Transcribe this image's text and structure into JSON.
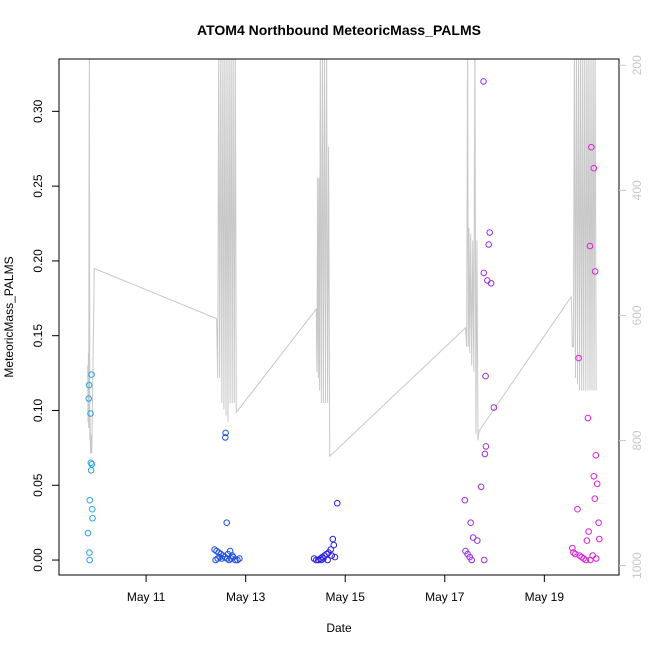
{
  "chart_data": {
    "type": "scatter",
    "title": "ATOM4 Northbound MeteoricMass_PALMS",
    "xlabel": "Date",
    "ylabel": "MeteoricMass_PALMS",
    "xlim": [
      "2017-05-09T06:00",
      "2017-05-20T12:00"
    ],
    "ylim": [
      -0.01,
      0.335
    ],
    "x_ticks": [
      {
        "date": "2017-05-11",
        "label": "May 11"
      },
      {
        "date": "2017-05-13",
        "label": "May 13"
      },
      {
        "date": "2017-05-15",
        "label": "May 15"
      },
      {
        "date": "2017-05-17",
        "label": "May 17"
      },
      {
        "date": "2017-05-19",
        "label": "May 19"
      }
    ],
    "y_ticks": [
      0.0,
      0.05,
      0.1,
      0.15,
      0.2,
      0.25,
      0.3
    ],
    "y_tick_labels": [
      "0.00",
      "0.05",
      "0.10",
      "0.15",
      "0.20",
      "0.25",
      "0.30"
    ],
    "right_axis": {
      "quantity": "pressure",
      "lim": [
        1015,
        190
      ],
      "reversed": true,
      "ticks": [
        200,
        400,
        600,
        800,
        1000
      ],
      "tick_labels": [
        "200",
        "400",
        "600",
        "800",
        "1000"
      ],
      "color": "#c8c8c8"
    },
    "grid": false,
    "series": [
      {
        "color": "#29a3e6",
        "points": [
          [
            "2017-05-09T20:30",
            0.117
          ],
          [
            "2017-05-09T20:20",
            0.108
          ],
          [
            "2017-05-09T21:40",
            0.124
          ],
          [
            "2017-05-09T21:10",
            0.098
          ],
          [
            "2017-05-09T21:20",
            0.065
          ],
          [
            "2017-05-09T21:50",
            0.064
          ],
          [
            "2017-05-09T21:30",
            0.06
          ],
          [
            "2017-05-09T20:50",
            0.04
          ],
          [
            "2017-05-09T22:00",
            0.034
          ],
          [
            "2017-05-09T22:10",
            0.028
          ],
          [
            "2017-05-09T20:00",
            0.018
          ],
          [
            "2017-05-09T20:40",
            0.005
          ],
          [
            "2017-05-09T20:45",
            0.0
          ]
        ]
      },
      {
        "color": "#1f4fe0",
        "points": [
          [
            "2017-05-12T14:20",
            0.085
          ],
          [
            "2017-05-12T14:10",
            0.082
          ],
          [
            "2017-05-12T14:50",
            0.025
          ],
          [
            "2017-05-12T09:00",
            0.007
          ],
          [
            "2017-05-12T10:00",
            0.006
          ],
          [
            "2017-05-12T11:00",
            0.005
          ],
          [
            "2017-05-12T12:00",
            0.004
          ],
          [
            "2017-05-12T13:00",
            0.003
          ],
          [
            "2017-05-12T14:00",
            0.002
          ],
          [
            "2017-05-12T15:00",
            0.001
          ],
          [
            "2017-05-12T16:00",
            0.0
          ],
          [
            "2017-05-12T17:00",
            0.001
          ],
          [
            "2017-05-12T18:00",
            0.002
          ],
          [
            "2017-05-12T19:00",
            0.0
          ],
          [
            "2017-05-12T20:00",
            0.0
          ],
          [
            "2017-05-12T21:00",
            0.001
          ],
          [
            "2017-05-12T12:30",
            0.001
          ],
          [
            "2017-05-12T15:30",
            0.004
          ],
          [
            "2017-05-12T16:30",
            0.006
          ],
          [
            "2017-05-12T17:30",
            0.003
          ],
          [
            "2017-05-12T11:30",
            0.002
          ],
          [
            "2017-05-12T09:30",
            0.0
          ],
          [
            "2017-05-12T10:30",
            0.001
          ]
        ]
      },
      {
        "color": "#2a1ee0",
        "points": [
          [
            "2017-05-14T20:10",
            0.038
          ],
          [
            "2017-05-14T18:00",
            0.014
          ],
          [
            "2017-05-14T18:30",
            0.01
          ],
          [
            "2017-05-14T17:00",
            0.007
          ],
          [
            "2017-05-14T16:00",
            0.005
          ],
          [
            "2017-05-14T15:00",
            0.004
          ],
          [
            "2017-05-14T14:00",
            0.003
          ],
          [
            "2017-05-14T13:00",
            0.002
          ],
          [
            "2017-05-14T12:00",
            0.001
          ],
          [
            "2017-05-14T11:00",
            0.0
          ],
          [
            "2017-05-14T10:00",
            0.0
          ],
          [
            "2017-05-14T09:00",
            0.001
          ],
          [
            "2017-05-14T19:00",
            0.002
          ],
          [
            "2017-05-14T15:30",
            0.0
          ],
          [
            "2017-05-14T13:30",
            0.001
          ],
          [
            "2017-05-14T17:30",
            0.003
          ],
          [
            "2017-05-14T12:30",
            0.0
          ]
        ]
      },
      {
        "color": "#9b2fe0",
        "points": [
          [
            "2017-05-17T18:40",
            0.32
          ],
          [
            "2017-05-17T21:40",
            0.219
          ],
          [
            "2017-05-17T21:10",
            0.211
          ],
          [
            "2017-05-17T18:50",
            0.192
          ],
          [
            "2017-05-17T20:30",
            0.187
          ],
          [
            "2017-05-17T22:20",
            0.185
          ],
          [
            "2017-05-17T19:40",
            0.123
          ],
          [
            "2017-05-17T23:40",
            0.102
          ],
          [
            "2017-05-17T19:50",
            0.076
          ],
          [
            "2017-05-17T19:20",
            0.071
          ],
          [
            "2017-05-17T17:30",
            0.049
          ],
          [
            "2017-05-17T09:40",
            0.04
          ],
          [
            "2017-05-17T12:30",
            0.025
          ],
          [
            "2017-05-17T13:40",
            0.015
          ],
          [
            "2017-05-17T15:40",
            0.013
          ],
          [
            "2017-05-17T10:00",
            0.006
          ],
          [
            "2017-05-17T11:00",
            0.004
          ],
          [
            "2017-05-17T12:00",
            0.002
          ],
          [
            "2017-05-17T13:00",
            0.0
          ],
          [
            "2017-05-17T19:00",
            0.0
          ]
        ]
      },
      {
        "color": "#e020d8",
        "points": [
          [
            "2017-05-19T22:40",
            0.276
          ],
          [
            "2017-05-19T23:50",
            0.262
          ],
          [
            "2017-05-19T22:00",
            0.21
          ],
          [
            "2017-05-20T00:30",
            0.193
          ],
          [
            "2017-05-19T16:30",
            0.135
          ],
          [
            "2017-05-19T21:00",
            0.095
          ],
          [
            "2017-05-20T00:50",
            0.07
          ],
          [
            "2017-05-19T23:50",
            0.056
          ],
          [
            "2017-05-20T01:30",
            0.051
          ],
          [
            "2017-05-20T00:20",
            0.041
          ],
          [
            "2017-05-19T16:00",
            0.034
          ],
          [
            "2017-05-20T02:10",
            0.025
          ],
          [
            "2017-05-19T21:20",
            0.019
          ],
          [
            "2017-05-20T02:30",
            0.014
          ],
          [
            "2017-05-19T20:30",
            0.013
          ],
          [
            "2017-05-19T13:30",
            0.008
          ],
          [
            "2017-05-19T14:00",
            0.005
          ],
          [
            "2017-05-19T15:00",
            0.004
          ],
          [
            "2017-05-19T17:00",
            0.003
          ],
          [
            "2017-05-19T18:00",
            0.002
          ],
          [
            "2017-05-19T19:00",
            0.001
          ],
          [
            "2017-05-19T20:00",
            0.0
          ],
          [
            "2017-05-19T22:10",
            0.0
          ],
          [
            "2017-05-19T23:20",
            0.003
          ],
          [
            "2017-05-20T01:00",
            0.001
          ]
        ]
      }
    ],
    "pressure_trace": {
      "color": "#c8c8c8",
      "points": [
        [
          "2017-05-09T19:50",
          680
        ],
        [
          "2017-05-09T20:00",
          770
        ],
        [
          "2017-05-09T20:10",
          660
        ],
        [
          "2017-05-09T20:20",
          780
        ],
        [
          "2017-05-09T20:30",
          350
        ],
        [
          "2017-05-09T20:40",
          175
        ],
        [
          "2017-05-09T20:50",
          800
        ],
        [
          "2017-05-09T21:00",
          760
        ],
        [
          "2017-05-09T21:10",
          820
        ],
        [
          "2017-05-09T21:30",
          820
        ],
        [
          "2017-05-09T21:40",
          790
        ],
        [
          "2017-05-09T21:50",
          820
        ],
        [
          "2017-05-09T23:00",
          525
        ],
        [
          "2017-05-12T10:00",
          605
        ],
        [
          "2017-05-12T10:30",
          700
        ],
        [
          "2017-05-12T11:00",
          160
        ],
        [
          "2017-05-12T11:30",
          700
        ],
        [
          "2017-05-12T12:00",
          160
        ],
        [
          "2017-05-12T12:30",
          740
        ],
        [
          "2017-05-12T13:00",
          160
        ],
        [
          "2017-05-12T13:30",
          750
        ],
        [
          "2017-05-12T14:00",
          160
        ],
        [
          "2017-05-12T14:30",
          760
        ],
        [
          "2017-05-12T15:00",
          160
        ],
        [
          "2017-05-12T15:30",
          770
        ],
        [
          "2017-05-12T16:00",
          160
        ],
        [
          "2017-05-12T16:30",
          740
        ],
        [
          "2017-05-12T17:00",
          160
        ],
        [
          "2017-05-12T17:30",
          740
        ],
        [
          "2017-05-12T18:00",
          160
        ],
        [
          "2017-05-12T18:30",
          740
        ],
        [
          "2017-05-12T19:00",
          160
        ],
        [
          "2017-05-12T19:30",
          755
        ],
        [
          "2017-05-14T10:00",
          590
        ],
        [
          "2017-05-14T10:20",
          690
        ],
        [
          "2017-05-14T10:40",
          380
        ],
        [
          "2017-05-14T11:00",
          700
        ],
        [
          "2017-05-14T11:20",
          380
        ],
        [
          "2017-05-14T11:40",
          720
        ],
        [
          "2017-05-14T12:00",
          160
        ],
        [
          "2017-05-14T12:30",
          740
        ],
        [
          "2017-05-14T13:00",
          160
        ],
        [
          "2017-05-14T13:30",
          740
        ],
        [
          "2017-05-14T14:00",
          160
        ],
        [
          "2017-05-14T14:30",
          740
        ],
        [
          "2017-05-14T15:00",
          160
        ],
        [
          "2017-05-14T15:30",
          740
        ],
        [
          "2017-05-14T16:00",
          330
        ],
        [
          "2017-05-14T16:30",
          825
        ],
        [
          "2017-05-17T10:00",
          620
        ],
        [
          "2017-05-17T10:30",
          650
        ],
        [
          "2017-05-17T11:00",
          160
        ],
        [
          "2017-05-17T11:20",
          650
        ],
        [
          "2017-05-17T11:40",
          460
        ],
        [
          "2017-05-17T12:00",
          660
        ],
        [
          "2017-05-17T12:30",
          470
        ],
        [
          "2017-05-17T13:00",
          680
        ],
        [
          "2017-05-17T13:30",
          480
        ],
        [
          "2017-05-17T14:00",
          690
        ],
        [
          "2017-05-17T14:30",
          160
        ],
        [
          "2017-05-17T15:00",
          790
        ],
        [
          "2017-05-17T15:30",
          480
        ],
        [
          "2017-05-17T16:00",
          800
        ],
        [
          "2017-05-17T16:30",
          785
        ],
        [
          "2017-05-19T13:00",
          570
        ],
        [
          "2017-05-19T13:30",
          650
        ],
        [
          "2017-05-19T14:00",
          650
        ],
        [
          "2017-05-19T14:30",
          160
        ],
        [
          "2017-05-19T15:00",
          700
        ],
        [
          "2017-05-19T15:30",
          160
        ],
        [
          "2017-05-19T16:00",
          710
        ],
        [
          "2017-05-19T16:30",
          160
        ],
        [
          "2017-05-19T17:00",
          720
        ],
        [
          "2017-05-19T17:30",
          160
        ],
        [
          "2017-05-19T18:00",
          720
        ],
        [
          "2017-05-19T18:30",
          160
        ],
        [
          "2017-05-19T19:00",
          720
        ],
        [
          "2017-05-19T19:30",
          160
        ],
        [
          "2017-05-19T20:00",
          720
        ],
        [
          "2017-05-19T20:30",
          160
        ],
        [
          "2017-05-19T21:00",
          720
        ],
        [
          "2017-05-19T21:30",
          160
        ],
        [
          "2017-05-19T22:00",
          720
        ],
        [
          "2017-05-19T22:30",
          160
        ],
        [
          "2017-05-19T23:00",
          720
        ],
        [
          "2017-05-19T23:30",
          160
        ],
        [
          "2017-05-20T00:00",
          720
        ],
        [
          "2017-05-20T00:30",
          160
        ],
        [
          "2017-05-20T01:00",
          720
        ]
      ]
    }
  }
}
